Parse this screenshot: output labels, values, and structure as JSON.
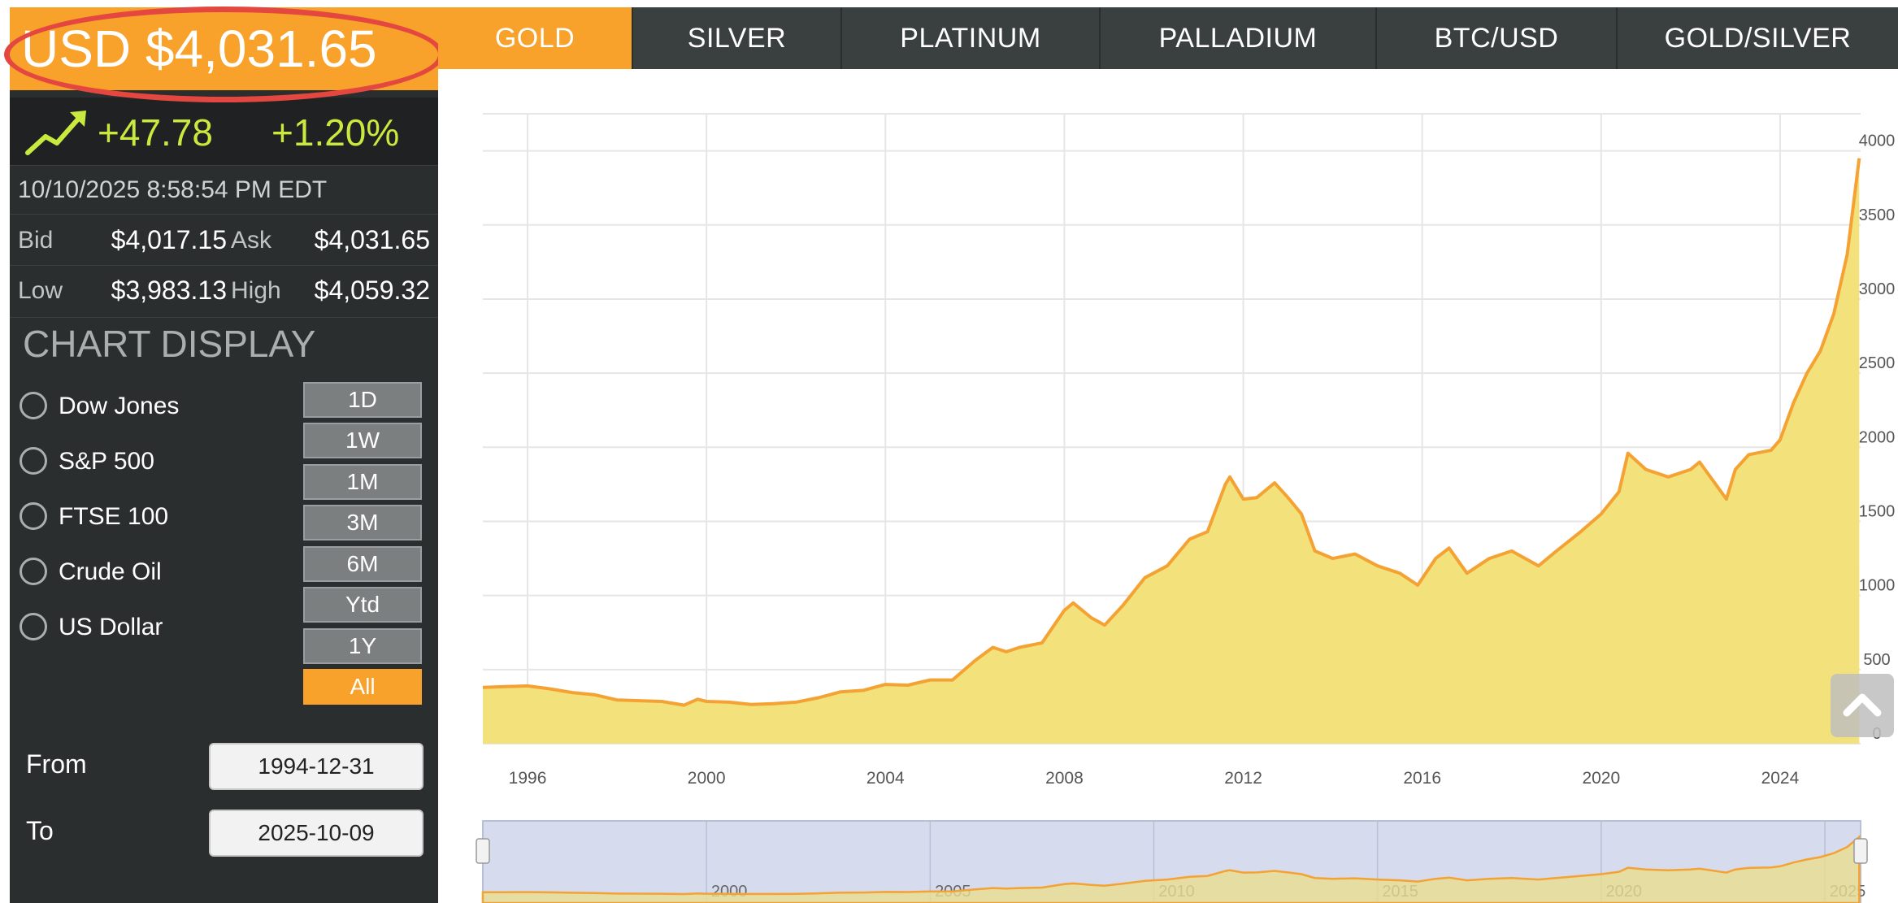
{
  "quote": {
    "price": "USD $4,031.65",
    "change_abs": "+47.78",
    "change_pct": "+1.20%",
    "timestamp": "10/10/2025 8:58:54 PM EDT",
    "bid_label": "Bid",
    "bid": "$4,017.15",
    "ask_label": "Ask",
    "ask": "$4,031.65",
    "low_label": "Low",
    "low": "$3,983.13",
    "high_label": "High",
    "high": "$4,059.32",
    "trend_icon": "trend-up-arrow-icon",
    "change_color": "#c8ea3e"
  },
  "chart_display": {
    "title": "CHART DISPLAY",
    "overlays": [
      {
        "label": "Dow Jones"
      },
      {
        "label": "S&P 500"
      },
      {
        "label": "FTSE 100"
      },
      {
        "label": "Crude Oil"
      },
      {
        "label": "US Dollar"
      }
    ],
    "ranges": [
      "1D",
      "1W",
      "1M",
      "3M",
      "6M",
      "Ytd",
      "1Y",
      "All"
    ],
    "active_range": "All"
  },
  "date_range": {
    "from_label": "From",
    "from": "1994-12-31",
    "to_label": "To",
    "to": "2025-10-09"
  },
  "tabs": [
    {
      "label": "GOLD",
      "active": true
    },
    {
      "label": "SILVER",
      "active": false
    },
    {
      "label": "PLATINUM",
      "active": false
    },
    {
      "label": "PALLADIUM",
      "active": false
    },
    {
      "label": "BTC/USD",
      "active": false
    },
    {
      "label": "GOLD/SILVER",
      "active": false
    }
  ],
  "colors": {
    "accent": "#f9a22b",
    "panel": "#2b2e2f",
    "highlight_ring": "#e4473f",
    "area_fill": "#f3e27c",
    "line": "#f4a233",
    "navigator_bg": "#d6dcee"
  },
  "chart_data": {
    "type": "area",
    "x_ticks": [
      "1996",
      "2000",
      "2004",
      "2008",
      "2012",
      "2016",
      "2020",
      "2024"
    ],
    "y_ticks": [
      "0",
      "500",
      "1000",
      "1500",
      "2000",
      "2500",
      "3000",
      "3500",
      "4000"
    ],
    "ylim": [
      0,
      4250
    ],
    "xlim": [
      1995.0,
      2025.8
    ],
    "grid": true,
    "navigator_ticks": [
      "2000",
      "2005",
      "2010",
      "2015",
      "2020",
      "2025"
    ],
    "series": [
      {
        "x": [
          1995.0,
          1995.5,
          1996.0,
          1996.5,
          1997.0,
          1997.5,
          1998.0,
          1998.5,
          1999.0,
          1999.5,
          1999.8,
          2000.0,
          2000.5,
          2001.0,
          2001.5,
          2002.0,
          2002.5,
          2003.0,
          2003.5,
          2004.0,
          2004.5,
          2005.0,
          2005.5,
          2006.0,
          2006.4,
          2006.7,
          2007.0,
          2007.5,
          2008.0,
          2008.2,
          2008.6,
          2008.9,
          2009.3,
          2009.8,
          2010.3,
          2010.8,
          2011.2,
          2011.6,
          2011.7,
          2012.0,
          2012.3,
          2012.7,
          2013.0,
          2013.3,
          2013.6,
          2014.0,
          2014.5,
          2015.0,
          2015.5,
          2015.9,
          2016.3,
          2016.6,
          2017.0,
          2017.5,
          2018.0,
          2018.6,
          2019.0,
          2019.5,
          2020.0,
          2020.4,
          2020.6,
          2021.0,
          2021.5,
          2022.0,
          2022.2,
          2022.8,
          2023.0,
          2023.3,
          2023.8,
          2024.0,
          2024.3,
          2024.6,
          2024.9,
          2025.2,
          2025.5,
          2025.77
        ],
        "values": [
          380,
          385,
          390,
          370,
          345,
          330,
          295,
          290,
          285,
          260,
          300,
          285,
          280,
          265,
          270,
          280,
          310,
          350,
          360,
          400,
          395,
          430,
          430,
          560,
          650,
          620,
          650,
          680,
          900,
          950,
          850,
          800,
          930,
          1120,
          1200,
          1380,
          1430,
          1750,
          1800,
          1650,
          1660,
          1760,
          1660,
          1550,
          1300,
          1250,
          1280,
          1200,
          1150,
          1070,
          1250,
          1320,
          1150,
          1250,
          1300,
          1200,
          1300,
          1420,
          1550,
          1700,
          1960,
          1850,
          1800,
          1850,
          1900,
          1650,
          1850,
          1950,
          1980,
          2050,
          2300,
          2500,
          2650,
          2900,
          3300,
          3950
        ]
      }
    ]
  }
}
